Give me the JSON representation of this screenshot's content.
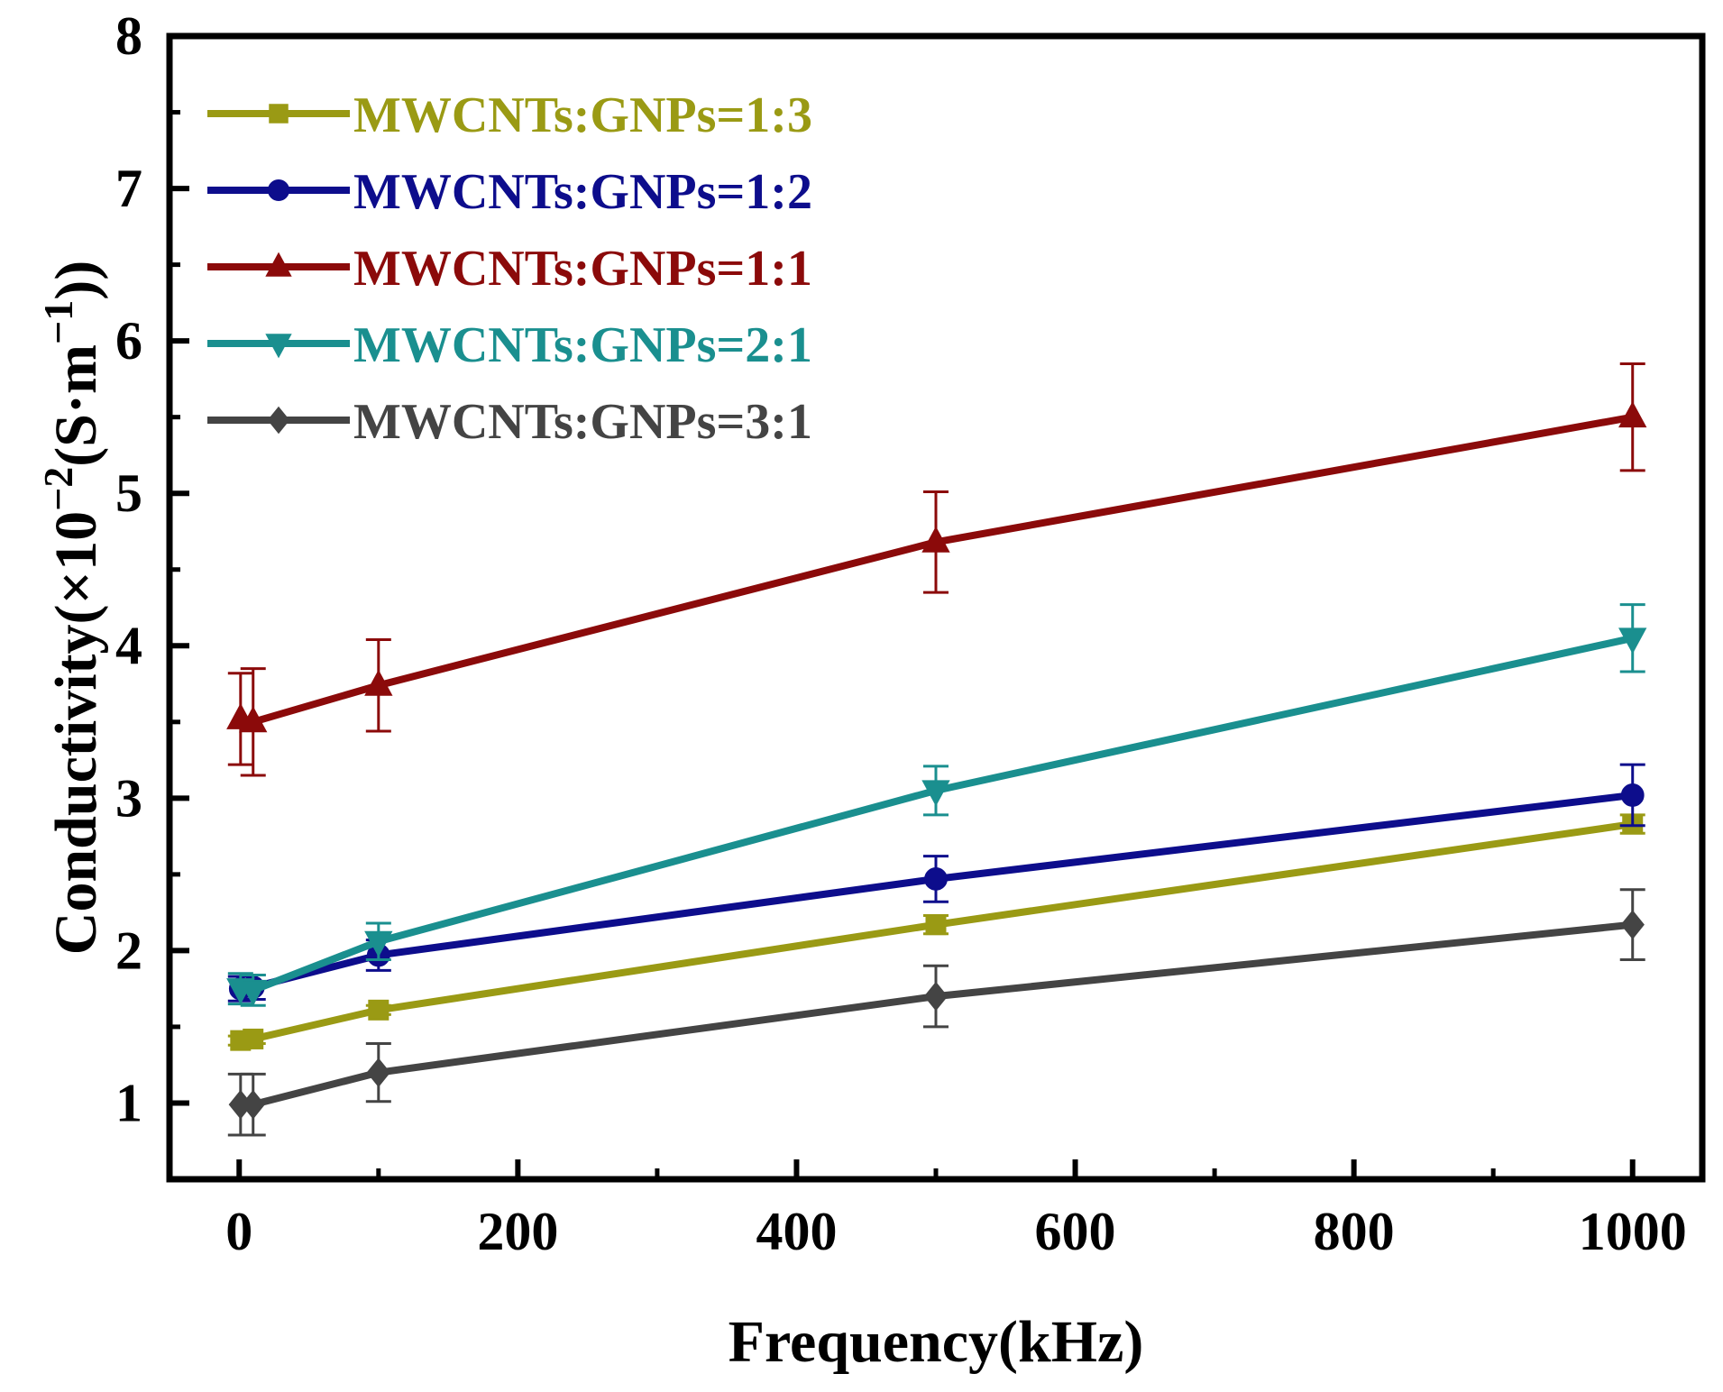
{
  "chart_data": {
    "type": "line",
    "xlabel": "Frequency(kHz)",
    "ylabel": {
      "main": "Conductivity(×10",
      "exp1": "−2",
      "mid": "(S·m",
      "exp2": "−1",
      "end": "))"
    },
    "xlim": [
      -50,
      1050
    ],
    "ylim": [
      0.5,
      8
    ],
    "xticks": [
      0,
      200,
      400,
      600,
      800,
      1000
    ],
    "yticks": [
      1,
      2,
      3,
      4,
      5,
      6,
      7,
      8
    ],
    "legend_position": "top-left",
    "series": [
      {
        "name": "MWCNTs:GNPs=1:3",
        "color": "#9a9a14",
        "marker": "square",
        "x": [
          1,
          10,
          100,
          500,
          1000
        ],
        "y": [
          1.41,
          1.42,
          1.61,
          2.17,
          2.83
        ],
        "err": [
          0.03,
          0.03,
          0.03,
          0.06,
          0.06
        ]
      },
      {
        "name": "MWCNTs:GNPs=1:2",
        "color": "#0d0d8c",
        "marker": "circle",
        "x": [
          1,
          10,
          100,
          500,
          1000
        ],
        "y": [
          1.75,
          1.76,
          1.97,
          2.47,
          3.02
        ],
        "err": [
          0.08,
          0.08,
          0.1,
          0.15,
          0.2
        ]
      },
      {
        "name": "MWCNTs:GNPs=1:1",
        "color": "#8b0a0a",
        "marker": "triangle-up",
        "x": [
          1,
          10,
          100,
          500,
          1000
        ],
        "y": [
          3.52,
          3.5,
          3.74,
          4.68,
          5.5
        ],
        "err": [
          0.3,
          0.35,
          0.3,
          0.33,
          0.35
        ]
      },
      {
        "name": "MWCNTs:GNPs=2:1",
        "color": "#1a8f8f",
        "marker": "triangle-down",
        "x": [
          1,
          10,
          100,
          500,
          1000
        ],
        "y": [
          1.75,
          1.74,
          2.06,
          3.05,
          4.05
        ],
        "err": [
          0.1,
          0.1,
          0.12,
          0.16,
          0.22
        ]
      },
      {
        "name": "MWCNTs:GNPs=3:1",
        "color": "#444444",
        "marker": "diamond",
        "x": [
          1,
          10,
          100,
          500,
          1000
        ],
        "y": [
          0.99,
          0.99,
          1.2,
          1.7,
          2.17
        ],
        "err": [
          0.2,
          0.2,
          0.19,
          0.2,
          0.23
        ]
      }
    ]
  }
}
